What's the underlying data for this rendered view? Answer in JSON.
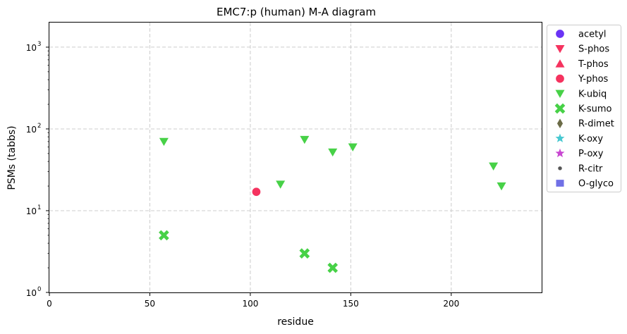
{
  "chart_data": {
    "type": "scatter",
    "title": "EMC7:p (human) M-A diagram",
    "xlabel": "residue",
    "ylabel": "PSMs (tabbs)",
    "xlim": [
      0,
      245
    ],
    "ylim": [
      1,
      2000
    ],
    "yscale": "log",
    "grid": true,
    "legend_position": "outside-right",
    "x_ticks": [
      {
        "value": 0,
        "label": "0"
      },
      {
        "value": 50,
        "label": "50"
      },
      {
        "value": 100,
        "label": "100"
      },
      {
        "value": 150,
        "label": "150"
      },
      {
        "value": 200,
        "label": "200"
      }
    ],
    "y_ticks": [
      {
        "value": 1,
        "base": "10",
        "exp": "0"
      },
      {
        "value": 10,
        "base": "10",
        "exp": "1"
      },
      {
        "value": 100,
        "base": "10",
        "exp": "2"
      },
      {
        "value": 1000,
        "base": "10",
        "exp": "3"
      }
    ],
    "series": [
      {
        "name": "acetyl",
        "marker": "circle",
        "color": "#6a33f5",
        "points": []
      },
      {
        "name": "S-phos",
        "marker": "triangle-down",
        "color": "#f5335f",
        "points": []
      },
      {
        "name": "T-phos",
        "marker": "triangle-up",
        "color": "#f5335f",
        "points": []
      },
      {
        "name": "Y-phos",
        "marker": "circle",
        "color": "#f5335f",
        "points": [
          {
            "x": 103,
            "y": 17
          }
        ]
      },
      {
        "name": "K-ubiq",
        "marker": "triangle-down",
        "color": "#47d147",
        "points": [
          {
            "x": 57,
            "y": 70
          },
          {
            "x": 115,
            "y": 21
          },
          {
            "x": 127,
            "y": 74
          },
          {
            "x": 141,
            "y": 52
          },
          {
            "x": 151,
            "y": 60
          },
          {
            "x": 221,
            "y": 35
          },
          {
            "x": 225,
            "y": 20
          }
        ]
      },
      {
        "name": "K-sumo",
        "marker": "x",
        "color": "#47d147",
        "points": [
          {
            "x": 57,
            "y": 5
          },
          {
            "x": 127,
            "y": 3
          },
          {
            "x": 141,
            "y": 2
          }
        ]
      },
      {
        "name": "R-dimet",
        "marker": "diamond",
        "color": "#6b6b47",
        "points": []
      },
      {
        "name": "K-oxy",
        "marker": "star",
        "color": "#47c8d1",
        "points": []
      },
      {
        "name": "P-oxy",
        "marker": "star",
        "color": "#c847d1",
        "points": []
      },
      {
        "name": "R-citr",
        "marker": "small-circle",
        "color": "#555555",
        "points": []
      },
      {
        "name": "O-glyco",
        "marker": "square",
        "color": "#7070e6",
        "points": []
      }
    ]
  }
}
